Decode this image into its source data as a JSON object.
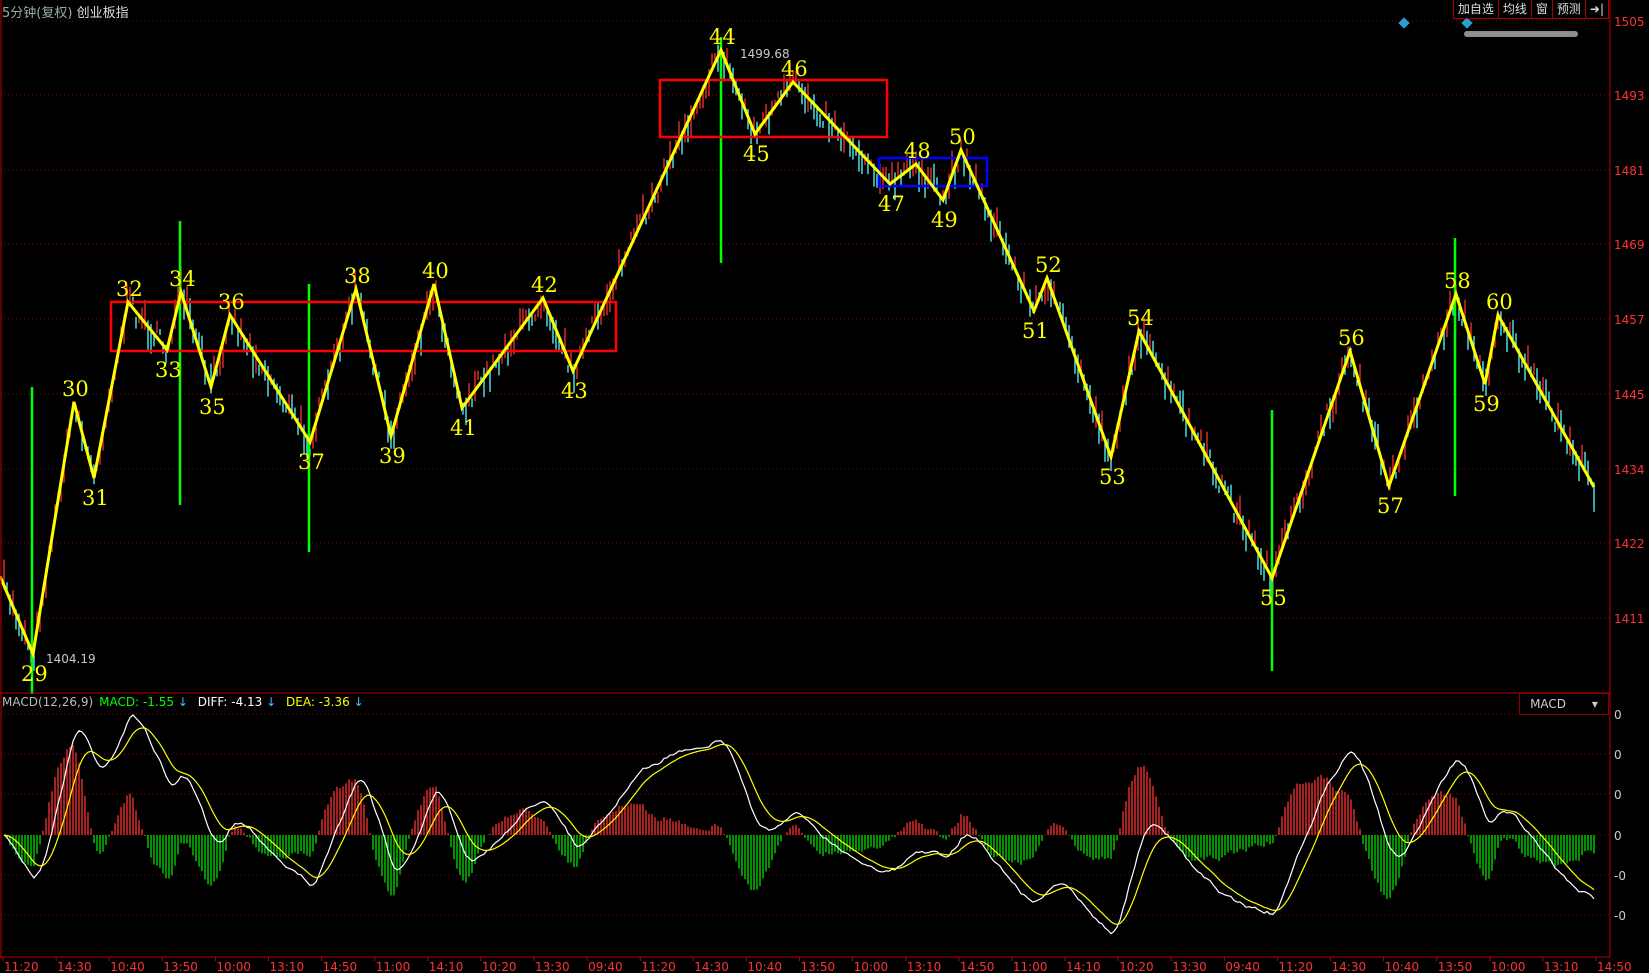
{
  "header": {
    "period": "5分钟(复权)",
    "instrument": "创业板指"
  },
  "toolbar": {
    "buttons": [
      "加自选",
      "均线",
      "窗",
      "预测"
    ],
    "exit_icon": "exit-arrow-icon"
  },
  "price_axis": {
    "labels": [
      "1505",
      "1493",
      "1481",
      "1469",
      "1457",
      "1445",
      "1434",
      "1422",
      "1411"
    ]
  },
  "annotations": {
    "high": "1499.68",
    "low": "1404.19"
  },
  "wave_labels": [
    "29",
    "30",
    "31",
    "32",
    "33",
    "34",
    "35",
    "36",
    "37",
    "38",
    "39",
    "40",
    "41",
    "42",
    "43",
    "44",
    "45",
    "46",
    "47",
    "48",
    "49",
    "50",
    "51",
    "52",
    "53",
    "54",
    "55",
    "56",
    "57",
    "58",
    "59",
    "60"
  ],
  "macd": {
    "title": "MACD(12,26,9)",
    "macd_label": "MACD: -1.55",
    "diff_label": "DIFF: -4.13",
    "dea_label": "DEA: -3.36",
    "arrow": "↓",
    "selector": "MACD",
    "axis_labels": [
      "0",
      "0",
      "0",
      "0",
      "-0",
      "-0"
    ]
  },
  "time_axis": {
    "labels": [
      "11:20",
      "14:30",
      "10:40",
      "13:50",
      "10:00",
      "13:10",
      "14:50",
      "11:00",
      "14:10",
      "10:20",
      "13:30",
      "09:40",
      "11:20",
      "14:30",
      "10:40",
      "13:50",
      "10:00",
      "13:10",
      "14:50",
      "11:00",
      "14:10",
      "10:20",
      "13:30",
      "09:40",
      "11:20",
      "14:30",
      "10:40",
      "13:50",
      "10:00",
      "13:10",
      "14:50"
    ]
  },
  "colors": {
    "up": "#ff3232",
    "down": "#54ffff",
    "zigzag": "#ffff00",
    "box": "#ff0000",
    "box_small": "#0000ff",
    "signal": "#00ff00",
    "grid": "#8b0000",
    "axis_text": "#ff3232"
  }
}
